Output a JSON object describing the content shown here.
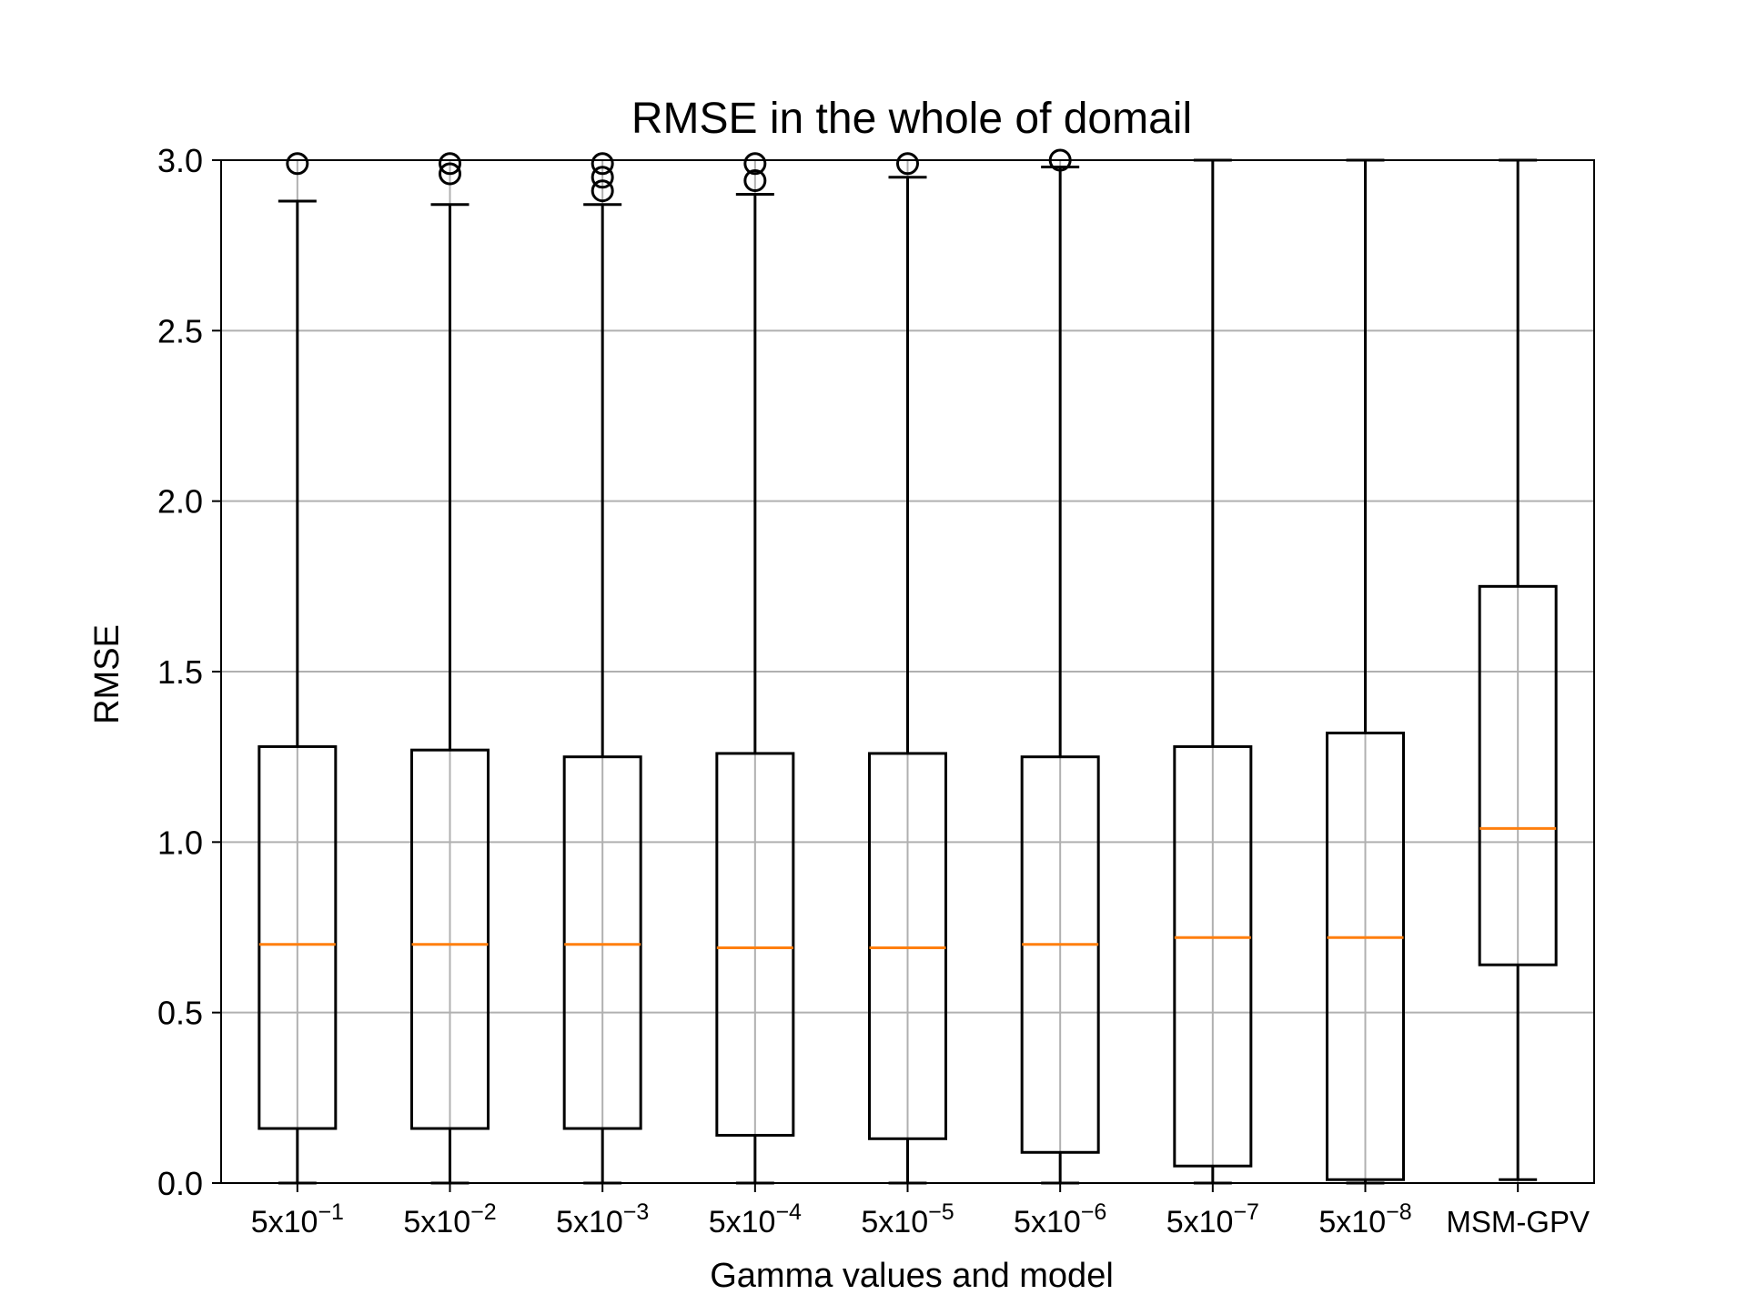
{
  "chart_data": {
    "type": "box",
    "title": "RMSE in the whole of domail",
    "xlabel": "Gamma values and model",
    "ylabel": "RMSE",
    "ylim": [
      0,
      3.0
    ],
    "yticks": [
      "0.0",
      "0.5",
      "1.0",
      "1.5",
      "2.0",
      "2.5",
      "3.0"
    ],
    "grid": true,
    "categories": [
      {
        "base": "5x10",
        "exp": "−1"
      },
      {
        "base": "5x10",
        "exp": "−2"
      },
      {
        "base": "5x10",
        "exp": "−3"
      },
      {
        "base": "5x10",
        "exp": "−4"
      },
      {
        "base": "5x10",
        "exp": "−5"
      },
      {
        "base": "5x10",
        "exp": "−6"
      },
      {
        "base": "5x10",
        "exp": "−7"
      },
      {
        "base": "5x10",
        "exp": "−8"
      },
      {
        "base": "MSM-GPV",
        "exp": ""
      }
    ],
    "boxes": [
      {
        "whislo": 0.0,
        "q1": 0.16,
        "med": 0.7,
        "q3": 1.28,
        "whishi": 2.88,
        "fliers": [
          2.99
        ]
      },
      {
        "whislo": 0.0,
        "q1": 0.16,
        "med": 0.7,
        "q3": 1.27,
        "whishi": 2.87,
        "fliers": [
          2.96,
          2.99
        ]
      },
      {
        "whislo": 0.0,
        "q1": 0.16,
        "med": 0.7,
        "q3": 1.25,
        "whishi": 2.87,
        "fliers": [
          2.91,
          2.95,
          2.99
        ]
      },
      {
        "whislo": 0.0,
        "q1": 0.14,
        "med": 0.69,
        "q3": 1.26,
        "whishi": 2.9,
        "fliers": [
          2.94,
          2.99
        ]
      },
      {
        "whislo": 0.0,
        "q1": 0.13,
        "med": 0.69,
        "q3": 1.26,
        "whishi": 2.95,
        "fliers": [
          2.99
        ]
      },
      {
        "whislo": 0.0,
        "q1": 0.09,
        "med": 0.7,
        "q3": 1.25,
        "whishi": 2.98,
        "fliers": [
          3.0
        ]
      },
      {
        "whislo": 0.0,
        "q1": 0.05,
        "med": 0.72,
        "q3": 1.28,
        "whishi": 3.0,
        "fliers": []
      },
      {
        "whislo": 0.0,
        "q1": 0.01,
        "med": 0.72,
        "q3": 1.32,
        "whishi": 3.0,
        "fliers": []
      },
      {
        "whislo": 0.01,
        "q1": 0.64,
        "med": 1.04,
        "q3": 1.75,
        "whishi": 3.0,
        "fliers": []
      }
    ],
    "colors": {
      "box": "#000000",
      "median": "#ff7f0e",
      "grid": "#b0b0b0",
      "background": "#ffffff"
    }
  }
}
